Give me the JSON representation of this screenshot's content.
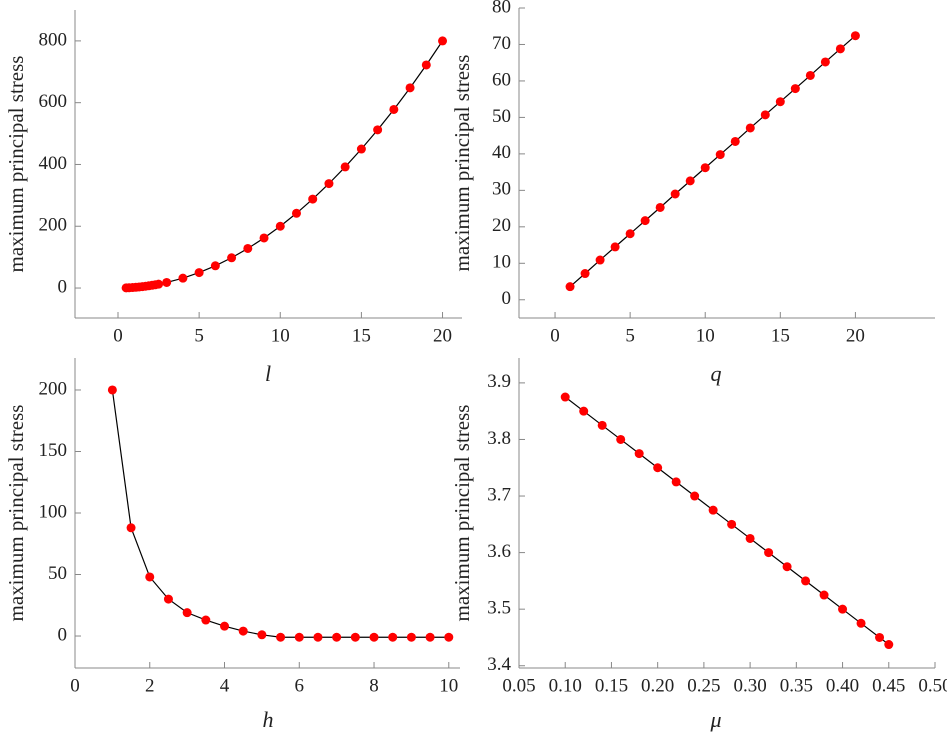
{
  "chart_data": [
    {
      "type": "line",
      "xlabel": "l",
      "ylabel": "maximum principal stress",
      "x": [
        0.5,
        0.7,
        0.9,
        1.1,
        1.3,
        1.5,
        1.7,
        1.9,
        2.1,
        2.3,
        2.5,
        3,
        4,
        5,
        6,
        7,
        8,
        9,
        10,
        11,
        12,
        13,
        14,
        15,
        16,
        17,
        18,
        19,
        20
      ],
      "values": [
        0.5,
        0.98,
        1.62,
        2.42,
        3.38,
        4.5,
        5.78,
        7.22,
        8.82,
        10.58,
        12.5,
        18,
        32,
        50,
        72,
        98,
        128,
        162,
        200,
        242,
        288,
        338,
        392,
        450,
        512,
        578,
        648,
        722,
        800
      ],
      "marker_color": "#ff0000",
      "line_color": "#000000",
      "xlim": [
        -2.65,
        21.2
      ],
      "ylim": [
        -97,
        900
      ],
      "xticks": [
        0,
        5,
        10,
        15,
        20
      ],
      "yticks": [
        0,
        200,
        400,
        600,
        800
      ]
    },
    {
      "type": "line",
      "xlabel": "q",
      "ylabel": "maximum principal stress",
      "x": [
        1,
        2,
        3,
        4,
        5,
        6,
        7,
        8,
        9,
        10,
        11,
        12,
        13,
        14,
        15,
        16,
        17,
        18,
        19,
        20
      ],
      "values": [
        3.6,
        7.2,
        10.9,
        14.5,
        18.1,
        21.7,
        25.3,
        29,
        32.6,
        36.2,
        39.8,
        43.4,
        47.1,
        50.7,
        54.3,
        57.9,
        61.5,
        65.2,
        68.8,
        72.4
      ],
      "marker_color": "#ff0000",
      "line_color": "#000000",
      "xlim": [
        -2.4,
        25.3
      ],
      "ylim": [
        -5,
        80
      ],
      "xticks": [
        0,
        5,
        10,
        15,
        20
      ],
      "yticks": [
        0,
        10,
        20,
        30,
        40,
        50,
        60,
        70,
        80
      ]
    },
    {
      "type": "line",
      "xlabel": "h",
      "ylabel": "maximum principal stress",
      "x": [
        1,
        1.5,
        2,
        2.5,
        3,
        3.5,
        4,
        4.5,
        5,
        5.5,
        6,
        6.5,
        7,
        7.5,
        8,
        8.5,
        9,
        9.5,
        10
      ],
      "values": [
        200,
        88,
        48,
        30,
        19,
        13,
        8,
        4,
        1,
        -1,
        -1,
        -1,
        -1,
        -1,
        -1,
        -1,
        -1,
        -1,
        -1
      ],
      "marker_color": "#ff0000",
      "line_color": "#000000",
      "xlim": [
        0,
        10.3
      ],
      "ylim": [
        -26,
        226
      ],
      "xticks": [
        0,
        2,
        4,
        6,
        8,
        10
      ],
      "yticks": [
        0,
        50,
        100,
        150,
        200
      ]
    },
    {
      "type": "line",
      "xlabel": "μ",
      "ylabel": "maximum principal stress",
      "x": [
        0.1,
        0.12,
        0.14,
        0.16,
        0.18,
        0.2,
        0.22,
        0.24,
        0.26,
        0.28,
        0.3,
        0.32,
        0.34,
        0.36,
        0.38,
        0.4,
        0.42,
        0.44,
        0.45
      ],
      "values": [
        3.875,
        3.85,
        3.825,
        3.8,
        3.775,
        3.75,
        3.725,
        3.7,
        3.675,
        3.65,
        3.625,
        3.6,
        3.575,
        3.55,
        3.525,
        3.5,
        3.475,
        3.45,
        3.4375
      ],
      "marker_color": "#ff0000",
      "line_color": "#000000",
      "xlim": [
        0.05,
        0.5
      ],
      "ylim": [
        3.396,
        3.944
      ],
      "xticks": [
        0.05,
        {
          "value": 0.1,
          "label": "0.10"
        },
        0.15,
        {
          "value": 0.2,
          "label": "0.20"
        },
        0.25,
        {
          "value": 0.3,
          "label": "0.30"
        },
        0.35,
        {
          "value": 0.4,
          "label": "0.40"
        },
        0.45,
        {
          "value": 0.5,
          "label": "0.50"
        }
      ],
      "yticks": [
        3.4,
        3.5,
        3.6,
        3.7,
        3.8,
        3.9
      ]
    }
  ]
}
